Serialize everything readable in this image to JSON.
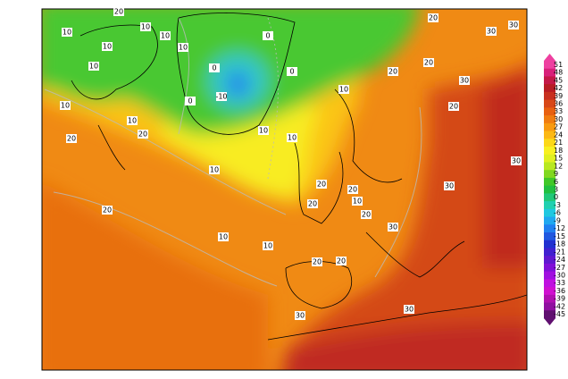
{
  "colorbar": {
    "labels": [
      51,
      48,
      45,
      42,
      39,
      36,
      33,
      30,
      27,
      24,
      21,
      18,
      15,
      12,
      9,
      6,
      3,
      0,
      -3,
      -6,
      -9,
      -12,
      -15,
      -18,
      -21,
      -24,
      -27,
      -30,
      -33,
      -36,
      -39,
      -42,
      -45
    ],
    "colors": [
      "#ee40a0",
      "#d8207a",
      "#c41848",
      "#b81c24",
      "#c83020",
      "#d84818",
      "#e86010",
      "#f07c10",
      "#f89a10",
      "#fcb814",
      "#fcd818",
      "#f8f020",
      "#e0f020",
      "#b8e820",
      "#80d820",
      "#40c828",
      "#20c040",
      "#20c878",
      "#20d0b0",
      "#20c8e0",
      "#20a8f0",
      "#2080f0",
      "#2058e0",
      "#2030d0",
      "#4020d0",
      "#6018d0",
      "#8010d8",
      "#a010e0",
      "#c010e0",
      "#d010d0",
      "#b010b0",
      "#9010a0",
      "#601070"
    ]
  },
  "map_labels": [
    "20",
    "10",
    "10",
    "10",
    "10",
    "10",
    "10",
    "0",
    "-10",
    "0",
    "0",
    "0",
    "10",
    "10",
    "10",
    "20",
    "10",
    "20",
    "10",
    "20",
    "10",
    "10",
    "10",
    "20",
    "20",
    "20",
    "30",
    "30",
    "30",
    "30",
    "30",
    "30",
    "30",
    "20",
    "20",
    "20",
    "10",
    "20",
    "20",
    "20",
    "30",
    "20"
  ]
}
